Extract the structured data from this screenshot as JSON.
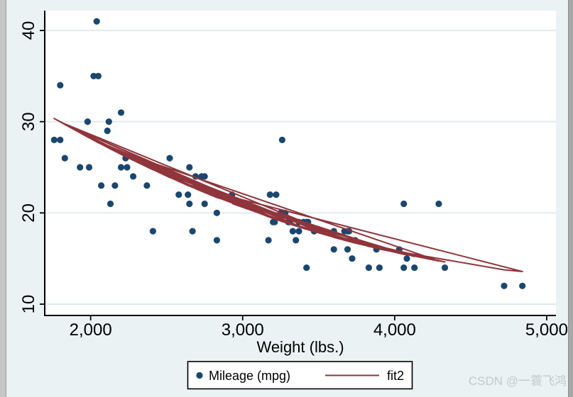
{
  "watermark": "CSDN @一蓑飞鸿",
  "colors": {
    "background": "#eaf2f3",
    "plot_background": "#ffffff",
    "gridline": "#dfebee",
    "axis": "#000000",
    "text": "#000000",
    "marker": "#1a476f",
    "fit_line": "#90353b",
    "legend_background": "#ffffff",
    "legend_border": "#000000",
    "watermark_text": "#c2cacd",
    "edge_strip_left": "#c7c7c7",
    "edge_strip_right": "#a8a8a8"
  },
  "legend": {
    "marker_label": "Mileage (mpg)",
    "line_label": "fit2"
  },
  "chart_data": {
    "type": "scatter",
    "title": "",
    "xlabel": "Weight (lbs.)",
    "ylabel": "",
    "xlim": [
      1698,
      5061
    ],
    "ylim": [
      8.76,
      42.17
    ],
    "x_ticks": [
      2000,
      3000,
      4000,
      5000
    ],
    "x_tick_labels": [
      "2,000",
      "3,000",
      "4,000",
      "5,000"
    ],
    "y_ticks": [
      10,
      20,
      30,
      40
    ],
    "y_tick_labels": [
      "10",
      "20",
      "30",
      "40"
    ],
    "grid": "horizontal-only",
    "legend_position": "bottom-center",
    "series": [
      {
        "name": "Mileage (mpg)",
        "type": "scatter",
        "x_name": "weight",
        "y_name": "mpg",
        "points": [
          [
            2930,
            22
          ],
          [
            3350,
            17
          ],
          [
            2640,
            22
          ],
          [
            3250,
            20
          ],
          [
            4080,
            15
          ],
          [
            3670,
            18
          ],
          [
            2230,
            26
          ],
          [
            3280,
            20
          ],
          [
            3880,
            16
          ],
          [
            3400,
            19
          ],
          [
            4330,
            14
          ],
          [
            3900,
            14
          ],
          [
            4290,
            21
          ],
          [
            2110,
            29
          ],
          [
            3690,
            16
          ],
          [
            3180,
            22
          ],
          [
            3220,
            22
          ],
          [
            2750,
            24
          ],
          [
            3430,
            19
          ],
          [
            2120,
            30
          ],
          [
            3600,
            18
          ],
          [
            3600,
            16
          ],
          [
            3740,
            17
          ],
          [
            1800,
            28
          ],
          [
            2650,
            21
          ],
          [
            4840,
            12
          ],
          [
            4720,
            12
          ],
          [
            3830,
            14
          ],
          [
            2580,
            22
          ],
          [
            4060,
            14
          ],
          [
            3720,
            15
          ],
          [
            3370,
            18
          ],
          [
            4130,
            14
          ],
          [
            2830,
            20
          ],
          [
            4060,
            21
          ],
          [
            3310,
            19
          ],
          [
            3300,
            19
          ],
          [
            3690,
            18
          ],
          [
            3370,
            19
          ],
          [
            2730,
            24
          ],
          [
            4030,
            16
          ],
          [
            3260,
            28
          ],
          [
            1800,
            34
          ],
          [
            2200,
            25
          ],
          [
            2520,
            26
          ],
          [
            3330,
            18
          ],
          [
            3700,
            18
          ],
          [
            3470,
            18
          ],
          [
            3210,
            19
          ],
          [
            3200,
            19
          ],
          [
            3420,
            19
          ],
          [
            2690,
            24
          ],
          [
            2830,
            17
          ],
          [
            2070,
            23
          ],
          [
            2650,
            25
          ],
          [
            2370,
            23
          ],
          [
            2020,
            35
          ],
          [
            2280,
            24
          ],
          [
            2750,
            21
          ],
          [
            2130,
            21
          ],
          [
            2240,
            25
          ],
          [
            1760,
            28
          ],
          [
            1980,
            30
          ],
          [
            3420,
            14
          ],
          [
            1830,
            26
          ],
          [
            2050,
            35
          ],
          [
            2410,
            18
          ],
          [
            2200,
            31
          ],
          [
            2670,
            18
          ],
          [
            2160,
            23
          ],
          [
            2040,
            41
          ],
          [
            1930,
            25
          ],
          [
            1990,
            25
          ],
          [
            3170,
            17
          ]
        ]
      },
      {
        "name": "fit2",
        "type": "line",
        "fit": "quadratic-in-dataset-order",
        "coefficients": {
          "intercept": 51.18308,
          "weight": -0.0141581,
          "weight_sq": 1.32e-06
        }
      }
    ]
  }
}
